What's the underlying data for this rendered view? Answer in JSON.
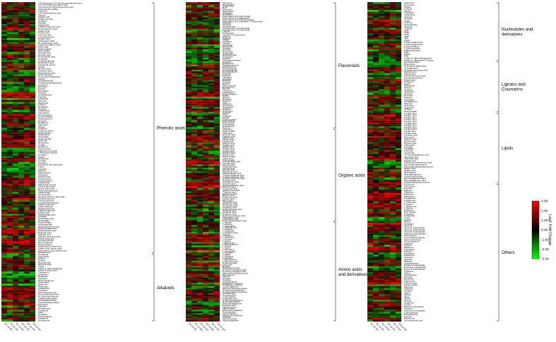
{
  "chart_data": {
    "type": "heatmap",
    "colorscale": {
      "low": "#00ff00",
      "mid": "#000000",
      "high": "#ff0000"
    },
    "legend": {
      "title": "Log2 Fold Change",
      "ticks": [
        "3.00",
        "2.00",
        "1.00",
        "0.00",
        "-1.00",
        "-2.00",
        "-3.00"
      ]
    },
    "columns": [
      "S1 vs S2",
      "S1 vs S3",
      "S1 vs S4",
      "S2 vs S3",
      "S2 vs S4",
      "S3 vs S4"
    ],
    "panels": [
      {
        "groups": [
          {
            "name": "Phenolic acids",
            "rows": [
              "3,4'-Dihydroxy-3',5'-dimethoxypropiophenone",
              "3,4,5-Trimethoxycinnamic acid",
              "4-O-Glucosyl-3-hydroxybenzoic acid",
              "Gallocatechin gallate",
              "Lonicerin",
              "3-O-Caffeoylquinic acid",
              "Tyrosol",
              "Vanillic acid",
              "Sinapyl alcohol",
              "Coniferin",
              "Syringin",
              "Salidroside",
              "4-Hydroxybenzoic acid",
              "Protocatechuic acid",
              "Caffeic acid",
              "Ferulic acid",
              "Isoferulic acid",
              "p-Coumaric acid",
              "Sinapic acid",
              "Chlorogenic acid",
              "Neochlorogenic acid",
              "Cryptochlorogenic acid",
              "Gallic acid",
              "Methyl gallate",
              "Ethyl gallate",
              "Syringic acid",
              "Gentisic acid",
              "Homovanillic acid",
              "Isovanillin",
              "Coniferyl alcohol",
              "Rosmarinic acid",
              "Salvianolic acid A",
              "Arbutin",
              "Benzoic acid",
              "Cinnamic acid",
              "Phenylacetic acid",
              "Hydroxytyrosol",
              "Protocatechualdehyde",
              "Vanillin",
              "Syringaldehyde",
              "4-Hydroxybenzaldehyde",
              "Coumarin",
              "Esculetin",
              "Esculin",
              "Scopoletin",
              "Scopolin",
              "Umbelliferone",
              "Fraxetin",
              "Isofraxidin",
              "Skimmin",
              "Daphnetin",
              "Osthole",
              "Bergapten",
              "Psoralen",
              "Xanthotoxin",
              "Imperatorin",
              "Isoimperatorin",
              "Columbianadin",
              "Praeruptorin A",
              "Decursin",
              "Nodakenin",
              "Marmesin",
              "Apterin",
              "Angelicin",
              "Oxypeucedanin",
              "Byakangelicin",
              "Phellopterin",
              "Pimpinellin",
              "Isopimpinellin",
              "Sphondin",
              "Heraclenin",
              "Cnidilin",
              "Notopterol",
              "Isoscopoletin",
              "6-Methoxycoumarin",
              "7-Methoxycoumarin",
              "Herniarin",
              "Ayapin",
              "Scoparone",
              "Limettin",
              "Citropten",
              "Aesculetin dimethyl ether",
              "Fraxin",
              "Cichoriin",
              "Daphnin",
              "Magnoloside",
              "Acteoside",
              "Isoacteoside",
              "Echinacoside",
              "Forsythoside A",
              "Cistanoside",
              "Salidroside isomer",
              "Tyrosol glucoside",
              "Benzyl glucoside",
              "Phenethyl glucoside",
              "Vanilloloside",
              "Glucovanillin",
              "Gentisic acid 5-O-glucoside",
              "Sinapoyl glucose",
              "Feruloyl glucose",
              "p-Coumaroyl glucose",
              "Caffeoyl glucose",
              "Galloyl glucose",
              "Digalloyl glucose",
              "Trigalloyl glucose",
              "Ellagic acid",
              "Methylellagic acid",
              "Corilagin",
              "Chebulagic acid",
              "Punicalagin",
              "Pedunculagin",
              "Tellimagrandin",
              "Hydroxycinnamic acid",
              "Dihydrocaffeic acid",
              "Dihydroferulic acid",
              "Phloretic acid",
              "Salicylic acid",
              "Salicylic acid glucoside",
              "Methyl salicylate",
              "Gentisyl alcohol",
              "Benzyl alcohol",
              "Phenylethanol",
              "Ferulic acid methyl ester",
              "Caffeic acid methyl ester",
              "Chlorogenic acid methyl ester",
              "Phthalic acid"
            ]
          },
          {
            "name": "Alkaloids",
            "rows": [
              "Hordenine",
              "Trigonelline",
              "Betaine",
              "Choline",
              "Nicotinamide",
              "Nicotinic acid",
              "Indole",
              "Indole-3-carboxaldehyde",
              "Indole-3-acetic acid",
              "Tryptamine",
              "Serotonin",
              "Dopamine",
              "Tyramine",
              "Phenethylamine",
              "Spermidine",
              "Spermine",
              "Putrescine",
              "Cadaverine",
              "Agmatine",
              "N-Feruloyltyramine",
              "N-Coumaroyltyramine",
              "N-Caffeoylputrescine",
              "Caffeoylspermidine",
              "Feruloylspermidine",
              "Coumaroylspermidine",
              "Piperidine",
              "Harmane",
              "Norharmane",
              "Carbazole",
              "Isatin",
              "Quinoline",
              "Camptothecin",
              "Vincamine",
              "Evodiamine"
            ]
          }
        ]
      },
      {
        "groups": [
          {
            "name": "Flavonoids",
            "rows": [
              "Quercetin",
              "Isoquercitrin",
              "Hyperoside",
              "Rutin",
              "Quercitrin",
              "Kaempferol",
              "Astragalin",
              "Nicotiflorin",
              "Kaempferol-3-O-rhamnoside",
              "Kaempferol-3-O-galactoside",
              "Kaempferol-3,7-O-dirhamnoside",
              "Kaempferol-3-O-rutinoside-7-O-glucoside",
              "Myricetin",
              "Myricitrin",
              "Isorhamnetin",
              "Isorhamnetin-3-O-glucoside",
              "Isorhamnetin-3-O-rutinoside",
              "Luteolin",
              "Cynaroside",
              "Luteolin-7-O-rutinoside",
              "Apigenin",
              "Apigetrin",
              "Vitexin",
              "Isovitexin",
              "Orientin",
              "Isoorientin",
              "Naringenin",
              "Naringin",
              "Narirutin",
              "Hesperetin",
              "Hesperidin",
              "Neohesperidin",
              "Eriodictyol",
              "Taxifolin",
              "Dihydrokaempferol",
              "Catechin",
              "Epicatechin",
              "Epigallocatechin",
              "Gallocatechin",
              "Procyanidin B1",
              "Procyanidin B2",
              "Procyanidin C1",
              "Phloretin",
              "Phlorizin",
              "Trilobatin",
              "Genistein",
              "Daidzein",
              "Genistin",
              "Daidzin",
              "Formononetin",
              "Biochanin A",
              "Ononin",
              "Calycosin",
              "Liquiritigenin",
              "Isoliquiritigenin",
              "Butein",
              "Chrysin",
              "Baicalein",
              "Wogonin",
              "Tricin",
              "Diosmetin",
              "Chrysoeriol",
              "Tangeretin",
              "Nobiletin",
              "Sinensetin",
              "Acacetin",
              "Morin",
              "Galangin",
              "Fisetin",
              "Sophoricoside",
              "Kaempferide",
              "Pinocembrin",
              "Pinobanksin",
              "Sakuranetin",
              "Poncirin"
            ]
          },
          {
            "name": "Organic acids",
            "rows": [
              "Citric acid",
              "Isocitric acid",
              "Malic acid",
              "Succinic acid",
              "Fumaric acid",
              "Maleic acid",
              "Tartaric acid",
              "Oxalic acid",
              "Malonic acid",
              "Glutaric acid",
              "Adipic acid",
              "Pimelic acid",
              "Suberic acid",
              "Azelaic acid",
              "Sebacic acid",
              "Quinic acid",
              "Shikimic acid",
              "Lactic acid",
              "Pyruvic acid",
              "2-Oxoglutaric acid",
              "Glyceric acid",
              "Glycolic acid",
              "Citramalic acid",
              "Itaconic acid",
              "Aconitic acid",
              "Mesaconic acid",
              "Methylmalonic acid",
              "2-Hydroxyglutaric acid",
              "3-Hydroxybutyric acid",
              "4-Hydroxybenzoic acid",
              "Nicotinic acid",
              "Pantothenic acid",
              "Ascorbic acid",
              "Dehydroascorbic acid",
              "Gluconic acid",
              "Glucuronic acid",
              "Galacturonic acid",
              "Threonic acid",
              "Erythronic acid",
              "Ribonic acid",
              "Arabinonic acid",
              "Xylonic acid",
              "Mucic acid",
              "Saccharic acid",
              "Glutaconic acid",
              "Homocitric acid",
              "Isovaleric acid",
              "2-Methylbutyric acid",
              "Hexanoic acid",
              "Octanoic acid",
              "Decanoic acid",
              "Hydroxyisocaproic acid",
              "Phenyllactic acid",
              "Indolelactic acid",
              "Hydroxyphenyllactic acid"
            ]
          },
          {
            "name": "Amino acids and derivatives",
            "rows": [
              "L-Alanine",
              "L-Arginine",
              "L-Asparagine",
              "L-Aspartic acid",
              "L-Cysteine",
              "L-Glutamine",
              "L-Glutamic acid",
              "Glycine",
              "L-Histidine",
              "L-Isoleucine",
              "L-Leucine",
              "L-Lysine",
              "L-Methionine",
              "L-Phenylalanine",
              "L-Proline",
              "L-Serine",
              "L-Threonine",
              "L-Tryptophan",
              "L-Tyrosine",
              "L-Valine",
              "L-Ornithine",
              "L-Citrulline",
              "L-Homoserine",
              "L-Pipecolic acid",
              "Hydroxyproline",
              "Sarcosine",
              "Betaine",
              "Pyroglutamic acid",
              "N-Acetyl-L-glutamic acid",
              "N-Acetyl-L-aspartic acid",
              "gamma-Aminobutyric acid",
              "beta-Alanine",
              "Taurine",
              "Creatine",
              "Carnitine",
              "Acetylcarnitine",
              "Glutathione reduced",
              "Glutathione oxidized",
              "Cysteinylglycine",
              "gamma-Glutamylcysteine",
              "S-Adenosylmethionine",
              "S-Adenosylhomocysteine",
              "Cystathionine",
              "Homocysteine",
              "L-Kynurenine",
              "Anthranilic acid",
              "5-Hydroxytryptophan",
              "N-Acetylserotonin",
              "Phenylacetylglycine",
              "Hippuric acid",
              "Leucyl-leucine",
              "Valyl-leucine",
              "Glycyl-phenylalanine",
              "Prolyl-glycine",
              "Tyrosyl-alanine",
              "Methionine sulfoxide",
              "Allantoin",
              "Glycyl-tyrosine",
              "Alanyl-glutamine"
            ]
          }
        ]
      },
      {
        "groups": [
          {
            "name": "Nucleotides and derivatives",
            "rows": [
              "Adenosine",
              "Guanosine",
              "Uridine",
              "Cytidine",
              "Inosine",
              "Thymidine",
              "Xanthosine",
              "Adenine",
              "Guanine",
              "Uracil",
              "Cytosine",
              "Hypoxanthine",
              "Xanthine",
              "Thymine",
              "AMP",
              "GMP",
              "UMP",
              "CMP",
              "IMP",
              "cAMP",
              "2'-Deoxyadenosine",
              "2'-Deoxyguanosine",
              "2'-Deoxyuridine",
              "2'-Deoxycytidine",
              "5-Methylcytosine",
              "NAD",
              "NADP",
              "FAD",
              "Uridine 5'-diphosphoglucose",
              "Uridine 5'-diphospho-D-xylose"
            ]
          },
          {
            "name": "Lignans and Coumarins",
            "rows": [
              "Nortracheloside",
              "Pinoresinol",
              "Pinoresinol diglucoside",
              "Syringaresinol",
              "Syringaresinol glucoside",
              "Medioresinol",
              "Lariciresinol",
              "Lariciresinol glucoside",
              "Secoisolariciresinol",
              "Matairesinol",
              "Arctigenin",
              "Arctiin",
              "Phillygenin",
              "Phillyrin",
              "Sesamin",
              "Scopoletin",
              "Scopolin",
              "Esculetin",
              "Fraxetin",
              "Isofraxidin",
              "Umbelliferone",
              "Skimmin",
              "Coumarin",
              "Daphnetin",
              "Osthole",
              "Isoscopoletin"
            ]
          },
          {
            "name": "Lipids",
            "rows": [
              "LysoPC 16:0",
              "LysoPC 18:0",
              "LysoPC 18:1",
              "LysoPC 18:2",
              "LysoPC 18:3",
              "LysoPE 16:0",
              "LysoPE 18:1",
              "LysoPE 18:2",
              "LysoPG 16:0",
              "LysoPI 18:2",
              "Linoleic acid",
              "Linolenic acid",
              "Oleic acid",
              "Palmitic acid",
              "Stearic acid",
              "Myristic acid",
              "Lauric acid",
              "9-HODE",
              "13-HODE",
              "9-HOTrE",
              "13-HOTrE",
              "12-Oxo-phytodienoic acid",
              "Jasmonic acid",
              "Traumatic acid",
              "Pinellic acid",
              "Trihydroxyoctadecenoic acid",
              "Glycerophosphocholine",
              "Glycerophosphoethanolamine",
              "MGDG 18:3",
              "DGDG 18:3",
              "Sphinganine",
              "Phytosphingosine",
              "Choline alfoscerate",
              "Monoacylglycerol 18:2",
              "Monoacylglycerol 16:0",
              "Dehydrodiconiferyl alcohol"
            ]
          },
          {
            "name": "Others",
            "rows": [
              "D-Glucose",
              "D-Fructose",
              "Sucrose",
              "Maltose",
              "Trehalose",
              "Raffinose",
              "Stachyose",
              "D-Galactose",
              "D-Mannose",
              "L-Arabinose",
              "D-Xylose",
              "L-Rhamnose",
              "L-Fucose",
              "D-Ribose",
              "Myo-Inositol",
              "D-Sorbitol",
              "D-Mannitol",
              "Xylitol",
              "Arabitol",
              "Ribitol",
              "Galactitol",
              "Glycerol",
              "Glycerol 3-phosphate",
              "Glucose 6-phosphate",
              "Fructose 6-phosphate",
              "Mannose 6-phosphate",
              "Glucosamine",
              "N-Acetylglucosamine",
              "Glucuronolactone",
              "Gluconolactone",
              "Erythritol",
              "Threitol",
              "Melibiose",
              "Cellobiose",
              "Lactose",
              "Isomaltose",
              "Palatinose",
              "Turanose",
              "Kestose",
              "Nystose",
              "Sedoheptulose",
              "Ribulose 5-phosphate",
              "Erythrose 4-phosphate",
              "Sucrose 6-phosphate",
              "Galactinol",
              "Pinitol",
              "Quebrachitol",
              "Ononitol",
              "Bornesitol",
              "Fagopyritol",
              "Chiro-inositol",
              "Scyllo-inositol",
              "Mannose",
              "Tagatose",
              "Sorbose",
              "Allose",
              "Altrose",
              "Idose",
              "Talose",
              "Psicose",
              "Arabinose",
              "Lyxose",
              "Ribose 5-phosphate",
              "Xylulose",
              "Xylulose 5-phosphate",
              "2-Deoxyribose",
              "Deoxyglucose",
              "Fucose",
              "Rhamnose",
              "Glucoheptonic acid"
            ]
          }
        ]
      }
    ]
  }
}
